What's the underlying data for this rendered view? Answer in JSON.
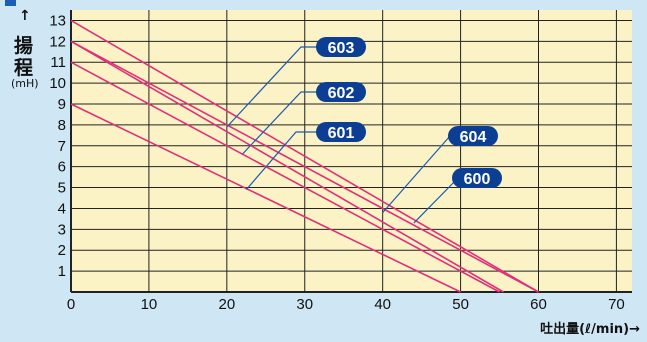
{
  "header_marker_color": "#1a5fb4",
  "y_axis": {
    "arrow": "↑",
    "label_chars": [
      "揚",
      "程"
    ],
    "unit": "(mH)"
  },
  "x_axis": {
    "label": "吐出量(ℓ/min)→"
  },
  "colors": {
    "plot_background": "#fbf3c6",
    "grid": "#222222",
    "series_line": "#e0307a",
    "leader_line": "#1e5ab0",
    "badge_fill": "#0c3f93",
    "badge_text": "#ffffff"
  },
  "chart_data": {
    "type": "line",
    "xlabel": "吐出量(ℓ/min)→",
    "ylabel": "揚程 (mH)",
    "xlim": [
      0,
      72
    ],
    "ylim": [
      0,
      13.5
    ],
    "xticks": [
      0,
      10,
      20,
      30,
      40,
      50,
      60,
      70
    ],
    "yticks": [
      1,
      2,
      3,
      4,
      5,
      6,
      7,
      8,
      9,
      10,
      11,
      12,
      13
    ],
    "grid": true,
    "series": [
      {
        "name": "600",
        "x": [
          0,
          60
        ],
        "y": [
          12,
          0
        ]
      },
      {
        "name": "601",
        "x": [
          0,
          50
        ],
        "y": [
          9,
          0
        ]
      },
      {
        "name": "602",
        "x": [
          0,
          55
        ],
        "y": [
          11,
          0
        ]
      },
      {
        "name": "603",
        "x": [
          0,
          60
        ],
        "y": [
          13,
          0
        ]
      },
      {
        "name": "604",
        "x": [
          0,
          55.5
        ],
        "y": [
          12,
          0
        ]
      }
    ],
    "annotations": [
      {
        "label": "603",
        "anchor": [
          20,
          7.9
        ]
      },
      {
        "label": "602",
        "anchor": [
          22,
          6.6
        ]
      },
      {
        "label": "601",
        "anchor": [
          22.5,
          4.9
        ]
      },
      {
        "label": "604",
        "anchor": [
          40,
          3.8
        ]
      },
      {
        "label": "600",
        "anchor": [
          44,
          3.3
        ]
      }
    ]
  }
}
